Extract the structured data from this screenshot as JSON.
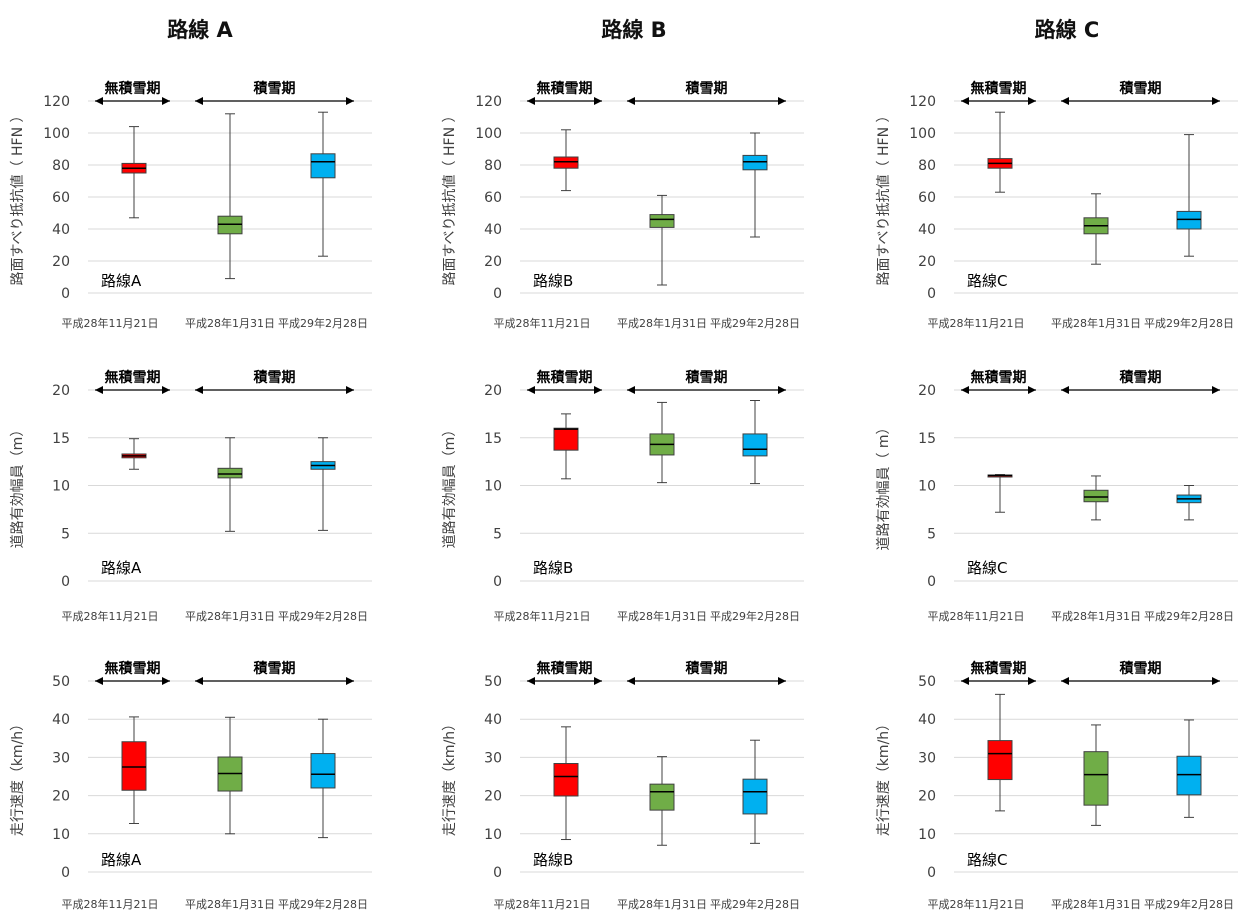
{
  "columns": [
    "路線 A",
    "路線 B",
    "路線 C"
  ],
  "colors": {
    "no_snow": "#ff0000",
    "snow_1": "#70ad47",
    "snow_2": "#00b0f0"
  },
  "chart_data": [
    {
      "type": "box",
      "route": "路線A",
      "ylabel": "路面すべり抵抗値（ HFN ）",
      "ylim": [
        0,
        120
      ],
      "yticks": [
        0,
        20,
        40,
        60,
        80,
        100,
        120
      ],
      "categories": [
        "平成28年11月21日",
        "平成28年1月31日",
        "平成29年2月28日"
      ],
      "periods": [
        {
          "label": "無積雪期",
          "from": 0,
          "to": 0
        },
        {
          "label": "積雪期",
          "from": 1,
          "to": 2
        }
      ],
      "boxes": [
        {
          "min": 47,
          "q1": 75,
          "median": 78,
          "q3": 81,
          "max": 104
        },
        {
          "min": 9,
          "q1": 37,
          "median": 43,
          "q3": 48,
          "max": 112
        },
        {
          "min": 23,
          "q1": 72,
          "median": 82,
          "q3": 87,
          "max": 113
        }
      ]
    },
    {
      "type": "box",
      "route": "路線B",
      "ylabel": "路面すべり抵抗値（ HFN ）",
      "ylim": [
        0,
        120
      ],
      "yticks": [
        0,
        20,
        40,
        60,
        80,
        100,
        120
      ],
      "categories": [
        "平成28年11月21日",
        "平成28年1月31日",
        "平成29年2月28日"
      ],
      "periods": [
        {
          "label": "無積雪期",
          "from": 0,
          "to": 0
        },
        {
          "label": "積雪期",
          "from": 1,
          "to": 2
        }
      ],
      "boxes": [
        {
          "min": 64,
          "q1": 78,
          "median": 82,
          "q3": 85,
          "max": 102
        },
        {
          "min": 5,
          "q1": 41,
          "median": 46,
          "q3": 49,
          "max": 61
        },
        {
          "min": 35,
          "q1": 77,
          "median": 82,
          "q3": 86,
          "max": 100
        }
      ]
    },
    {
      "type": "box",
      "route": "路線C",
      "ylabel": "路面すべり抵抗値（ HFN ）",
      "ylim": [
        0,
        120
      ],
      "yticks": [
        0,
        20,
        40,
        60,
        80,
        100,
        120
      ],
      "categories": [
        "平成28年11月21日",
        "平成28年1月31日",
        "平成29年2月28日"
      ],
      "periods": [
        {
          "label": "無積雪期",
          "from": 0,
          "to": 0
        },
        {
          "label": "積雪期",
          "from": 1,
          "to": 2
        }
      ],
      "boxes": [
        {
          "min": 63,
          "q1": 78,
          "median": 81,
          "q3": 84,
          "max": 113
        },
        {
          "min": 18,
          "q1": 37,
          "median": 42,
          "q3": 47,
          "max": 62
        },
        {
          "min": 23,
          "q1": 40,
          "median": 46,
          "q3": 51,
          "max": 99
        }
      ]
    },
    {
      "type": "box",
      "route": "路線A",
      "ylabel": "道路有効幅員（m）",
      "ylim": [
        0,
        20
      ],
      "yticks": [
        0,
        5,
        10,
        15,
        20
      ],
      "categories": [
        "平成28年11月21日",
        "平成28年1月31日",
        "平成29年2月28日"
      ],
      "periods": [
        {
          "label": "無積雪期",
          "from": 0,
          "to": 0
        },
        {
          "label": "積雪期",
          "from": 1,
          "to": 2
        }
      ],
      "boxes": [
        {
          "min": 11.7,
          "q1": 12.9,
          "median": 13.1,
          "q3": 13.3,
          "max": 14.9
        },
        {
          "min": 5.2,
          "q1": 10.8,
          "median": 11.2,
          "q3": 11.8,
          "max": 15.0
        },
        {
          "min": 5.3,
          "q1": 11.7,
          "median": 12.1,
          "q3": 12.5,
          "max": 15.0
        }
      ]
    },
    {
      "type": "box",
      "route": "路線B",
      "ylabel": "道路有効幅員（m）",
      "ylim": [
        0,
        20
      ],
      "yticks": [
        0,
        5,
        10,
        15,
        20
      ],
      "categories": [
        "平成28年11月21日",
        "平成28年1月31日",
        "平成29年2月28日"
      ],
      "periods": [
        {
          "label": "無積雪期",
          "from": 0,
          "to": 0
        },
        {
          "label": "積雪期",
          "from": 1,
          "to": 2
        }
      ],
      "boxes": [
        {
          "min": 10.7,
          "q1": 13.7,
          "median": 15.9,
          "q3": 16.0,
          "max": 17.5
        },
        {
          "min": 10.3,
          "q1": 13.2,
          "median": 14.3,
          "q3": 15.4,
          "max": 18.7
        },
        {
          "min": 10.2,
          "q1": 13.1,
          "median": 13.8,
          "q3": 15.4,
          "max": 18.9
        }
      ]
    },
    {
      "type": "box",
      "route": "路線C",
      "ylabel": "道路有効幅員（ m）",
      "ylim": [
        0,
        20
      ],
      "yticks": [
        0,
        5,
        10,
        15,
        20
      ],
      "categories": [
        "平成28年11月21日",
        "平成28年1月31日",
        "平成29年2月28日"
      ],
      "periods": [
        {
          "label": "無積雪期",
          "from": 0,
          "to": 0
        },
        {
          "label": "積雪期",
          "from": 1,
          "to": 2
        }
      ],
      "boxes": [
        {
          "min": 7.2,
          "q1": 11.0,
          "median": 11.05,
          "q3": 11.1,
          "max": 11.15
        },
        {
          "min": 6.4,
          "q1": 8.3,
          "median": 8.8,
          "q3": 9.5,
          "max": 11.0
        },
        {
          "min": 6.4,
          "q1": 8.2,
          "median": 8.6,
          "q3": 9.0,
          "max": 10.0
        }
      ]
    },
    {
      "type": "box",
      "route": "路線A",
      "ylabel": "走行速度（km/h）",
      "ylim": [
        0,
        50
      ],
      "yticks": [
        0,
        10,
        20,
        30,
        40,
        50
      ],
      "categories": [
        "平成28年11月21日",
        "平成28年1月31日",
        "平成29年2月28日"
      ],
      "periods": [
        {
          "label": "無積雪期",
          "from": 0,
          "to": 0
        },
        {
          "label": "積雪期",
          "from": 1,
          "to": 2
        }
      ],
      "boxes": [
        {
          "min": 12.7,
          "q1": 21.4,
          "median": 27.5,
          "q3": 34.1,
          "max": 40.6
        },
        {
          "min": 10.0,
          "q1": 21.2,
          "median": 25.8,
          "q3": 30.1,
          "max": 40.5
        },
        {
          "min": 9.0,
          "q1": 22.0,
          "median": 25.6,
          "q3": 31.0,
          "max": 40.0
        }
      ]
    },
    {
      "type": "box",
      "route": "路線B",
      "ylabel": "走行速度（km/h）",
      "ylim": [
        0,
        50
      ],
      "yticks": [
        0,
        10,
        20,
        30,
        40,
        50
      ],
      "categories": [
        "平成28年11月21日",
        "平成28年1月31日",
        "平成29年2月28日"
      ],
      "periods": [
        {
          "label": "無積雪期",
          "from": 0,
          "to": 0
        },
        {
          "label": "積雪期",
          "from": 1,
          "to": 2
        }
      ],
      "boxes": [
        {
          "min": 8.5,
          "q1": 19.9,
          "median": 25.0,
          "q3": 28.4,
          "max": 38.0
        },
        {
          "min": 7.0,
          "q1": 16.2,
          "median": 21.0,
          "q3": 23.0,
          "max": 30.2
        },
        {
          "min": 7.5,
          "q1": 15.2,
          "median": 21.0,
          "q3": 24.3,
          "max": 34.5
        }
      ]
    },
    {
      "type": "box",
      "route": "路線C",
      "ylabel": "走行速度（km/h）",
      "ylim": [
        0,
        50
      ],
      "yticks": [
        0,
        10,
        20,
        30,
        40,
        50
      ],
      "categories": [
        "平成28年11月21日",
        "平成28年1月31日",
        "平成29年2月28日"
      ],
      "periods": [
        {
          "label": "無積雪期",
          "from": 0,
          "to": 0
        },
        {
          "label": "積雪期",
          "from": 1,
          "to": 2
        }
      ],
      "boxes": [
        {
          "min": 16.0,
          "q1": 24.2,
          "median": 31.0,
          "q3": 34.4,
          "max": 46.5
        },
        {
          "min": 12.2,
          "q1": 17.5,
          "median": 25.5,
          "q3": 31.5,
          "max": 38.5
        },
        {
          "min": 14.3,
          "q1": 20.2,
          "median": 25.5,
          "q3": 30.3,
          "max": 39.8
        }
      ]
    }
  ]
}
